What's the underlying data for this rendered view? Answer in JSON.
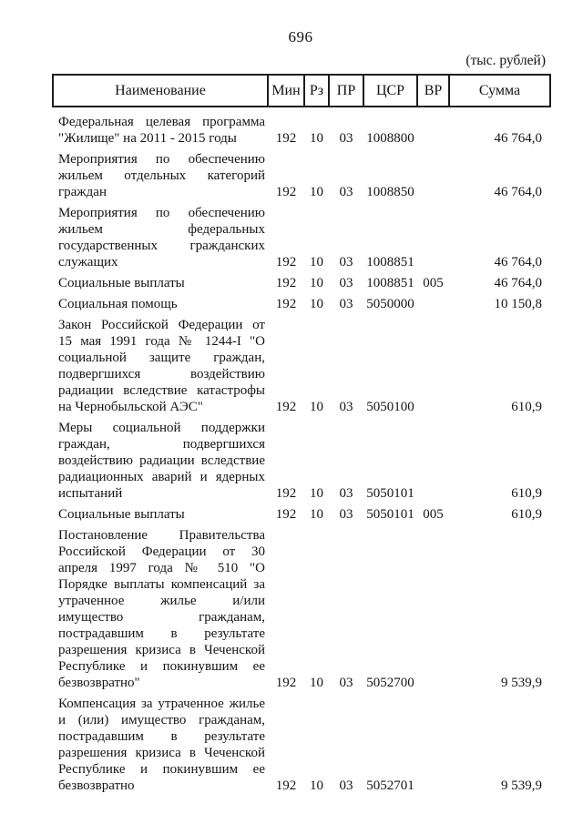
{
  "page": {
    "number": "696",
    "units_note": "(тыс. рублей)"
  },
  "table": {
    "headers": {
      "name": "Наименование",
      "min": "Мин",
      "rz": "Рз",
      "pr": "ПР",
      "csr": "ЦСР",
      "vr": "ВР",
      "sum": "Сумма"
    },
    "rows": [
      {
        "name": "Федеральная целевая программа \"Жилище\" на 2011 - 2015 годы",
        "name_lines": [
          "Федеральная целевая программа",
          "\"Жилище\" на 2011 - 2015 годы"
        ],
        "min": "192",
        "rz": "10",
        "pr": "03",
        "csr": "1008800",
        "vr": "",
        "sum": "46 764,0"
      },
      {
        "name": "Мероприятия по обеспечению жильем отдельных категорий граждан",
        "name_lines": [
          "Мероприятия по обеспечению",
          "жильем отдельных категорий",
          "граждан"
        ],
        "min": "192",
        "rz": "10",
        "pr": "03",
        "csr": "1008850",
        "vr": "",
        "sum": "46 764,0"
      },
      {
        "name": "Мероприятия по обеспечению жильем федеральных государственных гражданских служащих",
        "name_lines": [
          "Мероприятия по обеспечению",
          "жильем федеральных",
          "государственных гражданских",
          "служащих"
        ],
        "min": "192",
        "rz": "10",
        "pr": "03",
        "csr": "1008851",
        "vr": "",
        "sum": "46 764,0"
      },
      {
        "name": "Социальные выплаты",
        "name_lines": [
          "Социальные выплаты"
        ],
        "min": "192",
        "rz": "10",
        "pr": "03",
        "csr": "1008851",
        "vr": "005",
        "sum": "46 764,0"
      },
      {
        "name": "Социальная помощь",
        "name_lines": [
          "Социальная помощь"
        ],
        "min": "192",
        "rz": "10",
        "pr": "03",
        "csr": "5050000",
        "vr": "",
        "sum": "10 150,8"
      },
      {
        "name": "Закон Российской Федерации от 15 мая 1991 года № 1244-I \"О социальной защите граждан, подвергшихся воздействию радиации вследствие катастрофы на Чернобыльской АЭС\"",
        "name_lines": [
          "Закон Российской Федерации от",
          "15 мая 1991 года № 1244-I \"О",
          "социальной защите граждан,",
          "подвергшихся воздействию",
          "радиации вследствие катастрофы",
          "на Чернобыльской АЭС\""
        ],
        "min": "192",
        "rz": "10",
        "pr": "03",
        "csr": "5050100",
        "vr": "",
        "sum": "610,9"
      },
      {
        "name": "Меры социальной поддержки граждан, подвергшихся воздействию радиации вследствие радиационных аварий и ядерных испытаний",
        "name_lines": [
          "Меры социальной поддержки",
          "граждан, подвергшихся",
          "воздействию радиации вследствие",
          "радиационных аварий и ядерных",
          "испытаний"
        ],
        "min": "192",
        "rz": "10",
        "pr": "03",
        "csr": "5050101",
        "vr": "",
        "sum": "610,9"
      },
      {
        "name": "Социальные выплаты",
        "name_lines": [
          "Социальные выплаты"
        ],
        "min": "192",
        "rz": "10",
        "pr": "03",
        "csr": "5050101",
        "vr": "005",
        "sum": "610,9"
      },
      {
        "name": "Постановление Правительства Российской Федерации от 30 апреля 1997 года № 510 \"О Порядке выплаты компенсаций за утраченное жилье и/или имущество гражданам, пострадавшим в результате разрешения кризиса в Чеченской Республике и покинувшим ее безвозвратно\"",
        "name_lines": [
          "Постановление Правительства",
          "Российской Федерации от 30",
          "апреля 1997 года № 510 \"О",
          "Порядке выплаты компенсаций за",
          "утраченное жилье и/или",
          "имущество гражданам,",
          "пострадавшим в результате",
          "разрешения кризиса в Чеченской",
          "Республике и покинувшим ее",
          "безвозвратно\""
        ],
        "min": "192",
        "rz": "10",
        "pr": "03",
        "csr": "5052700",
        "vr": "",
        "sum": "9 539,9"
      },
      {
        "name": "Компенсация за утраченное жилье и (или) имущество гражданам, пострадавшим в результате разрешения кризиса в Чеченской Республике и покинувшим ее безвозвратно",
        "name_lines": [
          "Компенсация за утраченное жилье",
          "и (или) имущество гражданам,",
          "пострадавшим в результате",
          "разрешения кризиса в Чеченской",
          "Республике и покинувшим ее",
          "безвозвратно"
        ],
        "min": "192",
        "rz": "10",
        "pr": "03",
        "csr": "5052701",
        "vr": "",
        "sum": "9 539,9"
      }
    ]
  }
}
